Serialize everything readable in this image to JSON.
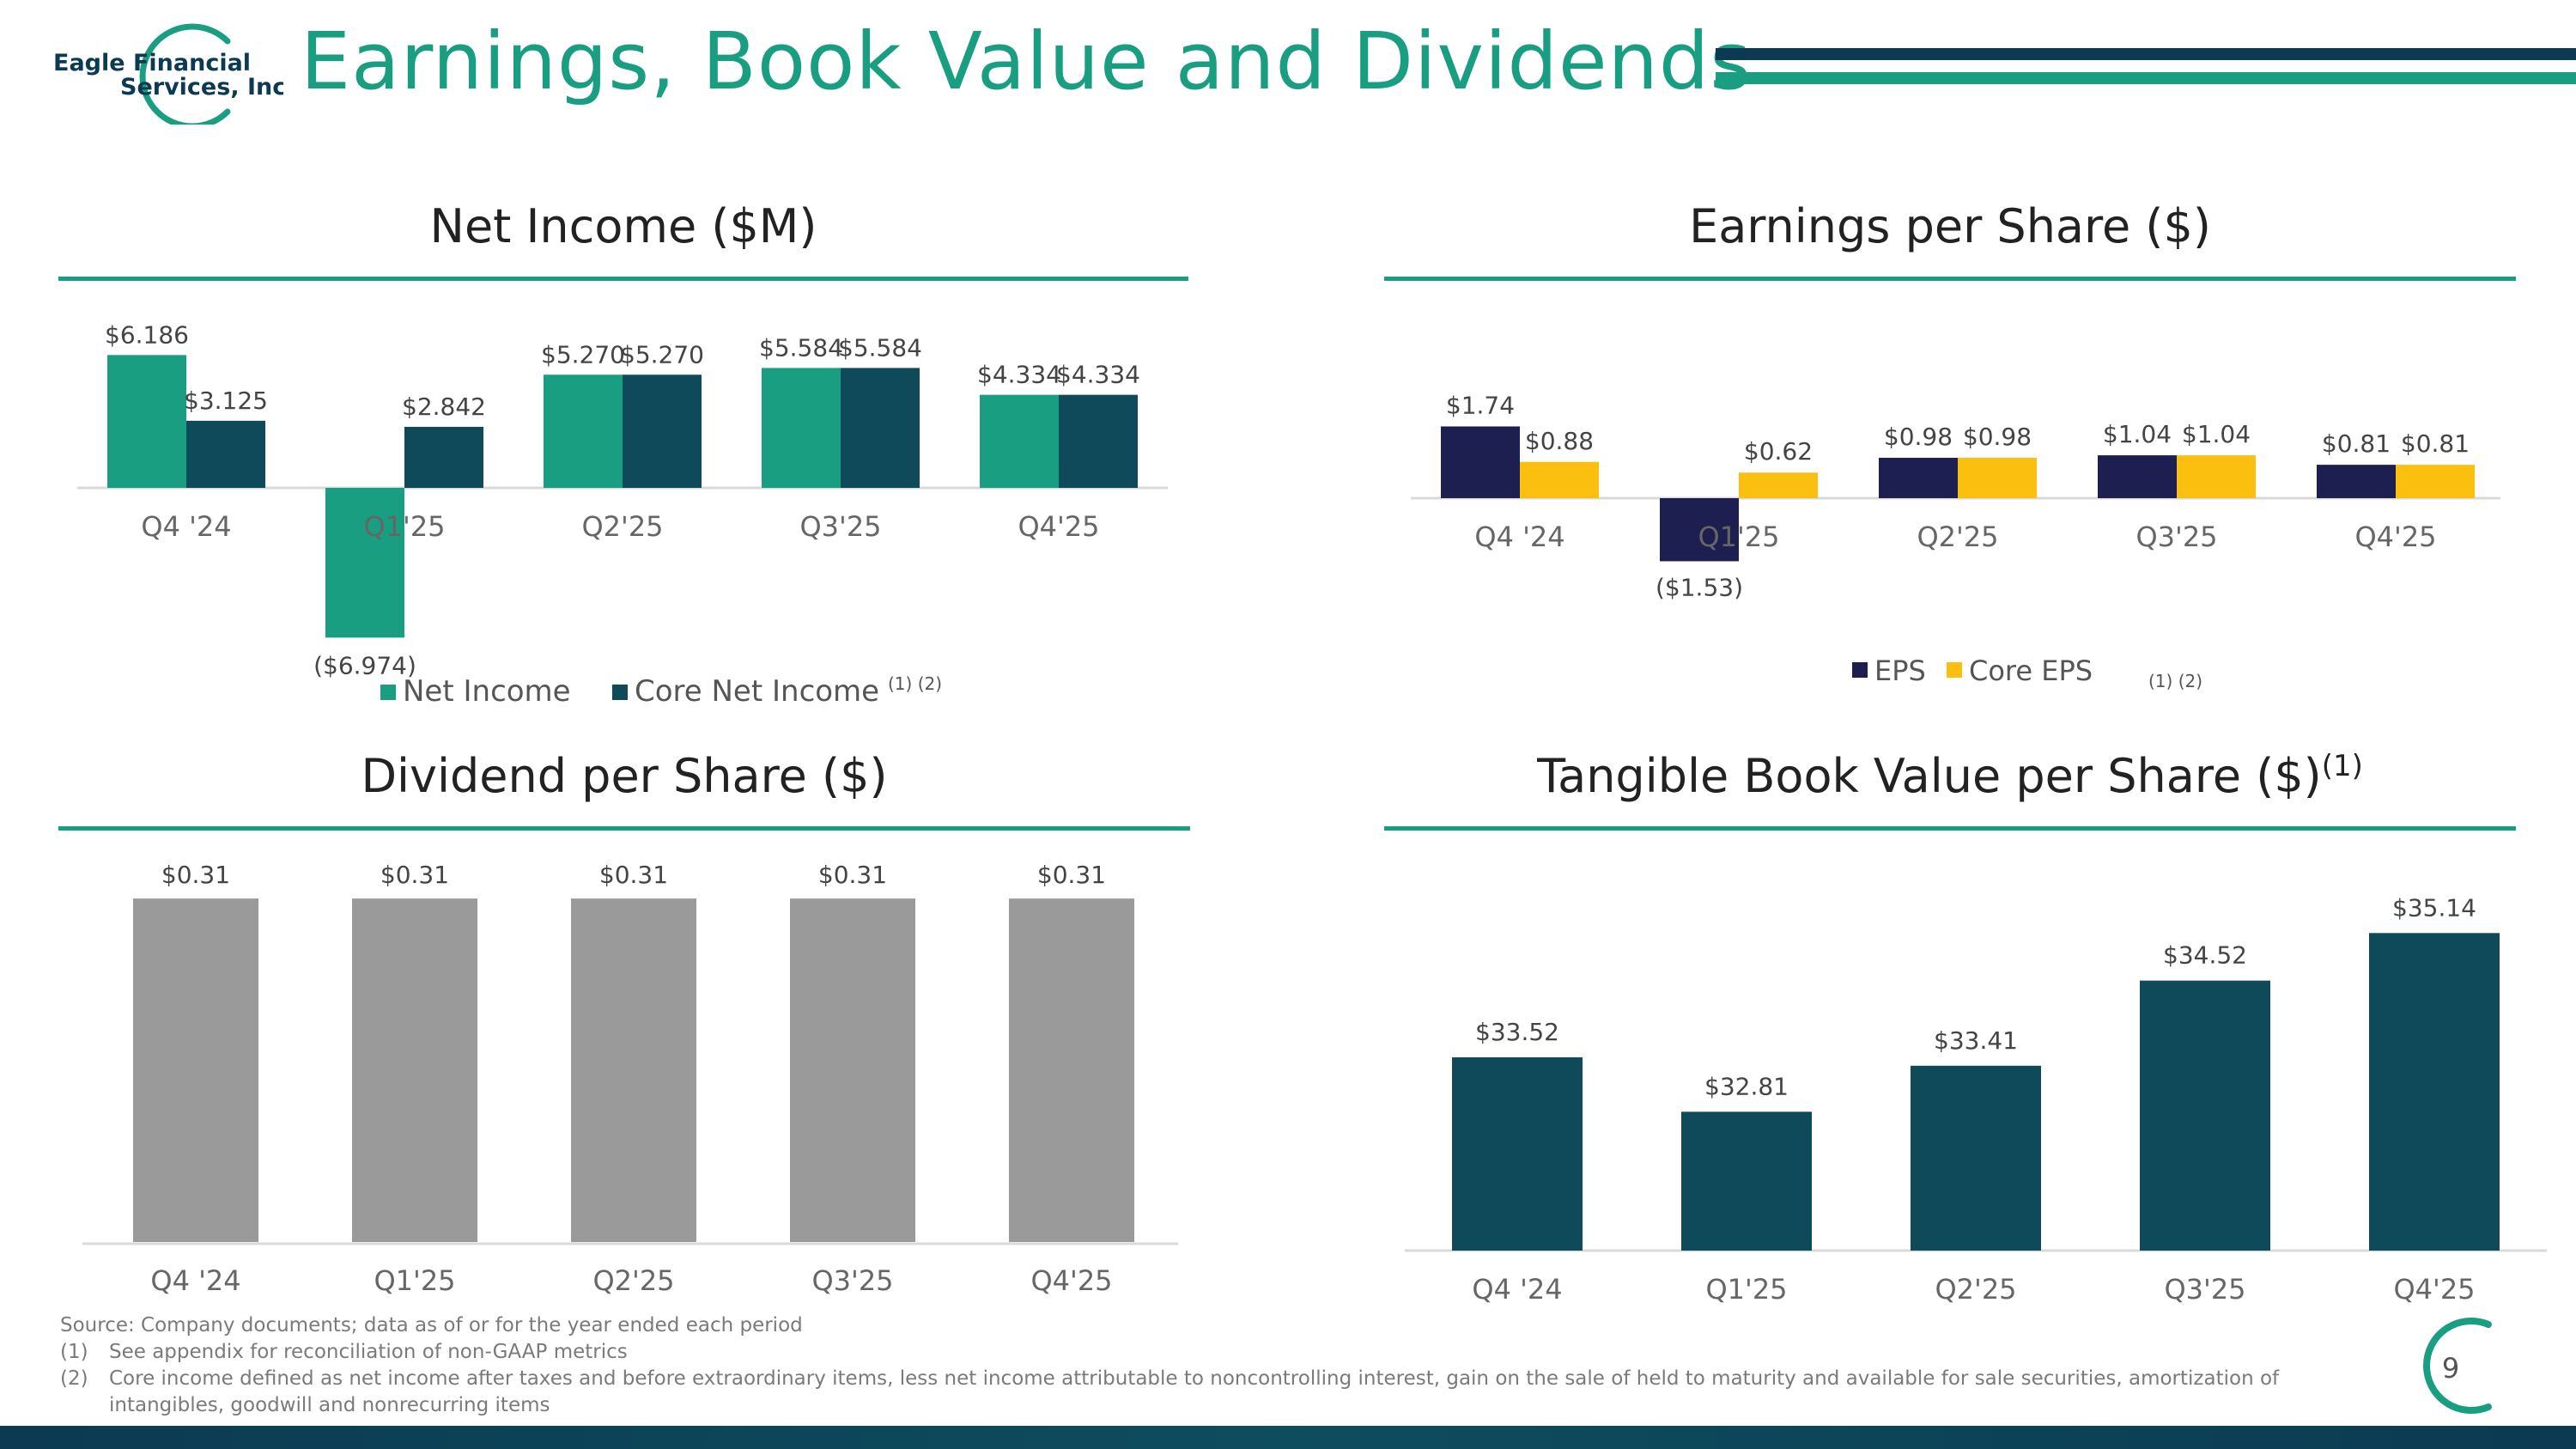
{
  "logo": {
    "line1": "Eagle Financial",
    "line2": "Services, Inc."
  },
  "title": "Earnings, Book Value and Dividends",
  "colors": {
    "accent": "#1a9e82",
    "dark_teal": "#0e4a5a",
    "navy": "#0b3a52",
    "eps": "#1c1f4f",
    "core_eps": "#fbbf0f",
    "dividend": "#9a9a9a"
  },
  "chart_data": [
    {
      "id": "net-income",
      "type": "bar",
      "title": "Net Income ($M)",
      "categories": [
        "Q4 '24",
        "Q1'25",
        "Q2'25",
        "Q3'25",
        "Q4'25"
      ],
      "series": [
        {
          "name": "Net Income",
          "values": [
            6.186,
            -6.974,
            5.27,
            5.584,
            4.334
          ],
          "labels": [
            "$6.186",
            "($6.974)",
            "$5.270",
            "$5.584",
            "$4.334"
          ]
        },
        {
          "name": "Core Net Income",
          "sup": "(1) (2)",
          "values": [
            3.125,
            2.842,
            5.27,
            5.584,
            4.334
          ],
          "labels": [
            "$3.125",
            "$2.842",
            "$5.270",
            "$5.584",
            "$4.334"
          ]
        }
      ],
      "legend": "bottom"
    },
    {
      "id": "eps",
      "type": "bar",
      "title": "Earnings per Share ($)",
      "categories": [
        "Q4 '24",
        "Q1'25",
        "Q2'25",
        "Q3'25",
        "Q4'25"
      ],
      "series": [
        {
          "name": "EPS",
          "values": [
            1.74,
            -1.53,
            0.98,
            1.04,
            0.81
          ],
          "labels": [
            "$1.74",
            "($1.53)",
            "$0.98",
            "$1.04",
            "$0.81"
          ]
        },
        {
          "name": "Core EPS",
          "sup": "(1) (2)",
          "values": [
            0.88,
            0.62,
            0.98,
            1.04,
            0.81
          ],
          "labels": [
            "$0.88",
            "$0.62",
            "$0.98",
            "$1.04",
            "$0.81"
          ]
        }
      ],
      "legend": "bottom"
    },
    {
      "id": "dividend",
      "type": "bar",
      "title": "Dividend per Share ($)",
      "categories": [
        "Q4 '24",
        "Q1'25",
        "Q2'25",
        "Q3'25",
        "Q4'25"
      ],
      "series": [
        {
          "name": "Dividend per Share",
          "values": [
            0.31,
            0.31,
            0.31,
            0.31,
            0.31
          ],
          "labels": [
            "$0.31",
            "$0.31",
            "$0.31",
            "$0.31",
            "$0.31"
          ]
        }
      ]
    },
    {
      "id": "tbvps",
      "type": "bar",
      "title": "Tangible Book Value per Share ($)",
      "title_sup": "(1)",
      "categories": [
        "Q4 '24",
        "Q1'25",
        "Q2'25",
        "Q3'25",
        "Q4'25"
      ],
      "series": [
        {
          "name": "Tangible Book Value per Share",
          "values": [
            33.52,
            32.81,
            33.41,
            34.52,
            35.14
          ],
          "labels": [
            "$33.52",
            "$32.81",
            "$33.41",
            "$34.52",
            "$35.14"
          ]
        }
      ],
      "ylim": [
        31,
        35.5
      ]
    }
  ],
  "footnotes": {
    "source": "Source: Company documents; data as of or for the year ended each period",
    "notes": [
      {
        "num": "(1)",
        "text": "See appendix for reconciliation of non-GAAP metrics"
      },
      {
        "num": "(2)",
        "text": "Core income defined as net income after taxes and before extraordinary items, less net income attributable to noncontrolling interest, gain on the sale of held to maturity and available for sale securities, amortization of intangibles, goodwill and nonrecurring items"
      }
    ]
  },
  "page_number": "9"
}
